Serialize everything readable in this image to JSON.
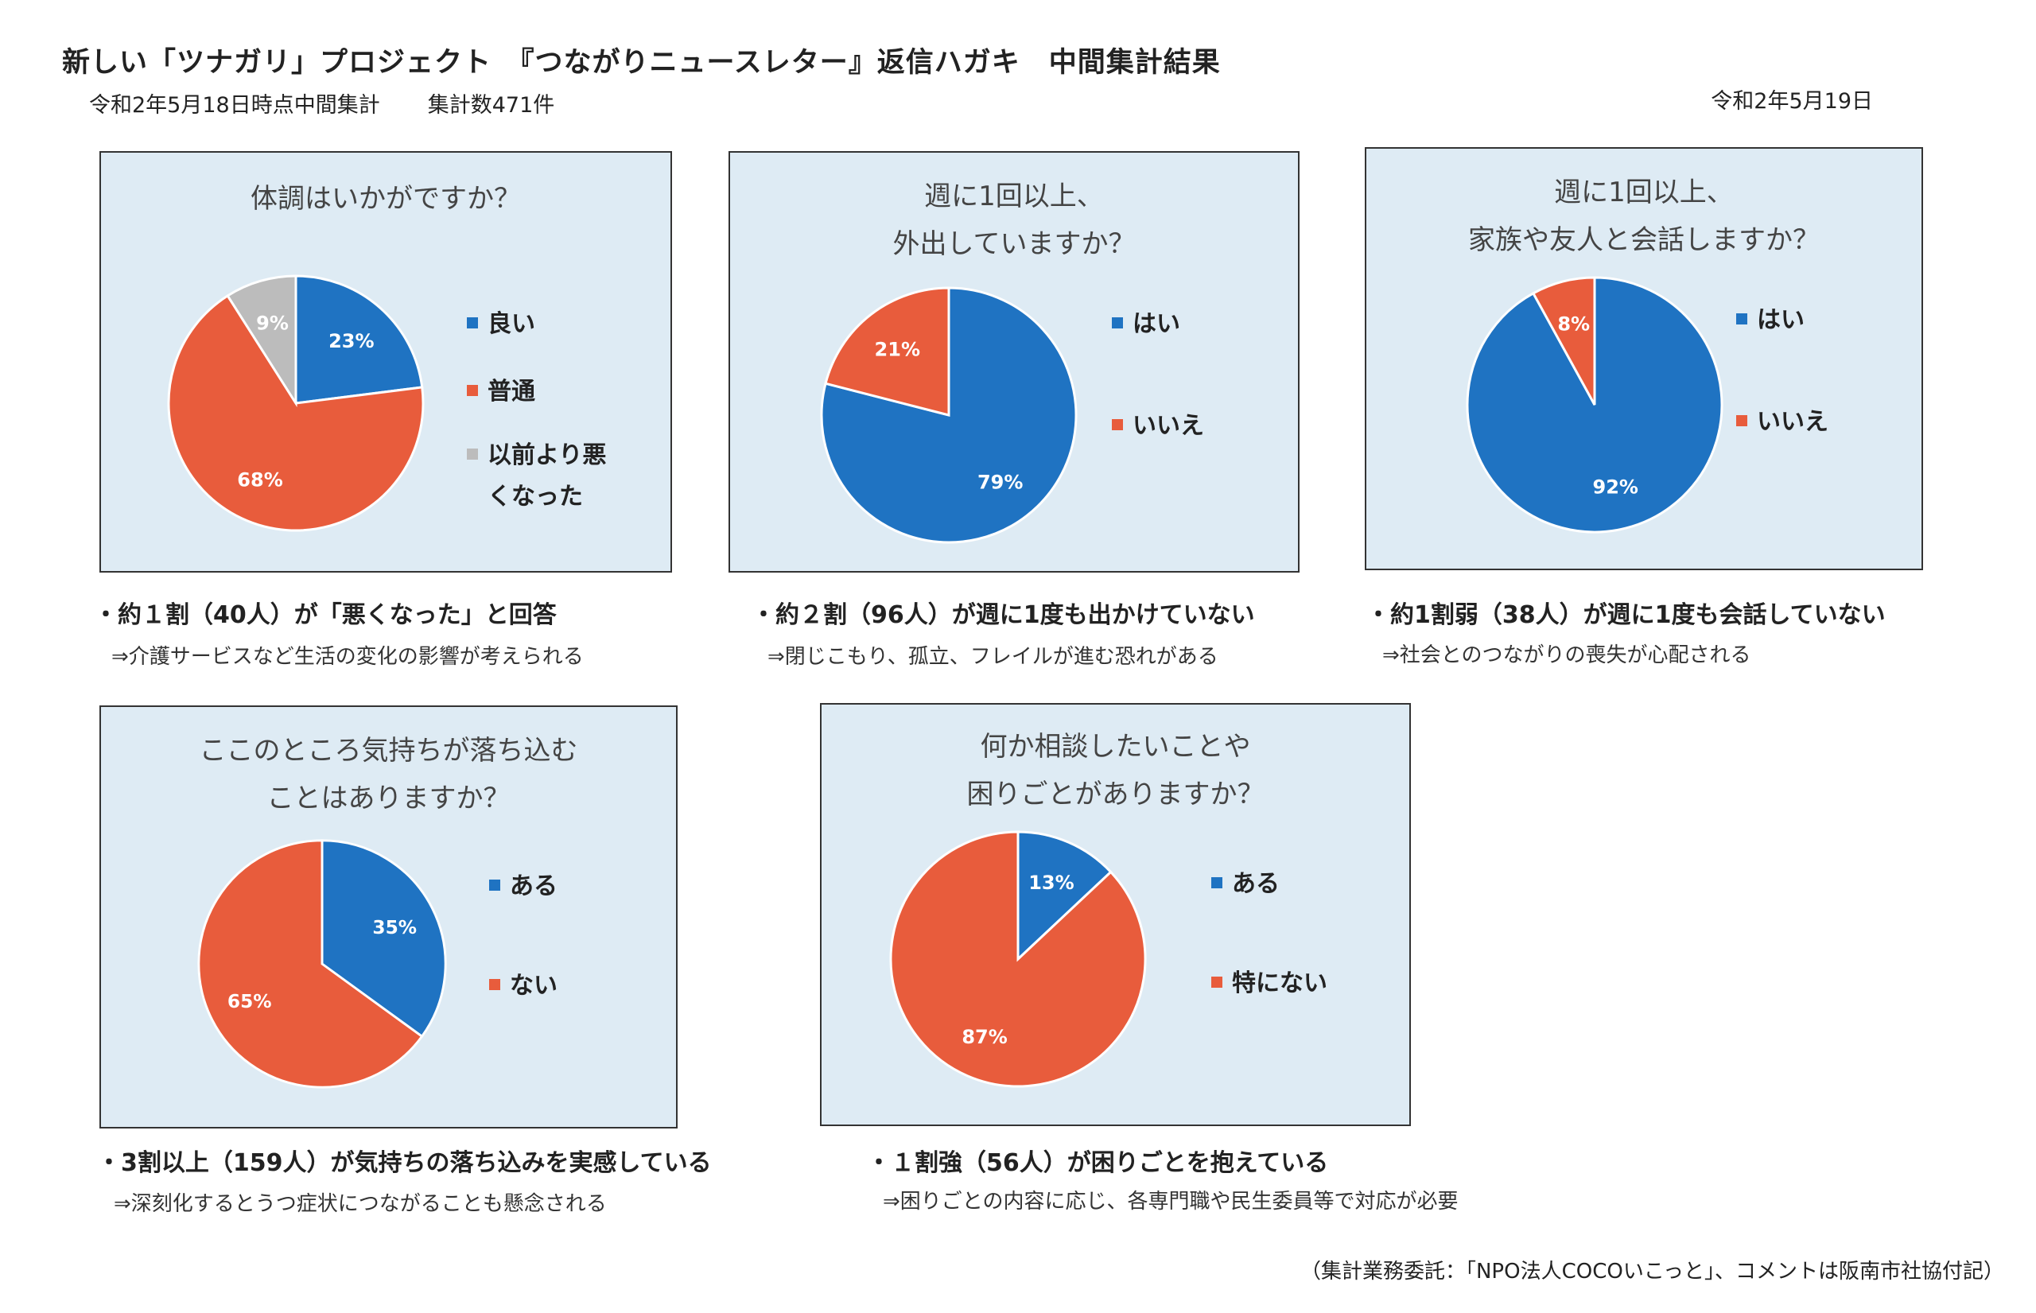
{
  "header": {
    "title": "新しい「ツナガリ」プロジェクト　『つながりニュースレター』返信ハガキ　中間集計結果",
    "subtitle_date": "令和2年5月18日時点中間集計",
    "subtitle_count": "集計数471件",
    "issue_date": "令和2年5月19日"
  },
  "colors": {
    "blue": "#1f73c2",
    "orange": "#e85c3c",
    "gray": "#bcbcbc",
    "panel_bg": "#deebf4"
  },
  "chart_data": [
    {
      "type": "pie",
      "title_lines": [
        "体調はいかがですか？"
      ],
      "categories": [
        "良い",
        "普通",
        "以前より悪くなった"
      ],
      "legend_lines": [
        [
          "良い"
        ],
        [
          "普通"
        ],
        [
          "以前より悪",
          "くなった"
        ]
      ],
      "values": [
        23,
        68,
        9
      ],
      "labels": [
        "23%",
        "68%",
        "9%"
      ],
      "colors": [
        "#1f73c2",
        "#e85c3c",
        "#bcbcbc"
      ],
      "legend": "right"
    },
    {
      "type": "pie",
      "title_lines": [
        "週に1回以上、",
        "外出していますか？"
      ],
      "categories": [
        "はい",
        "いいえ"
      ],
      "legend_lines": [
        [
          "はい"
        ],
        [
          "いいえ"
        ]
      ],
      "values": [
        79,
        21
      ],
      "labels": [
        "79%",
        "21%"
      ],
      "colors": [
        "#1f73c2",
        "#e85c3c"
      ],
      "legend": "right"
    },
    {
      "type": "pie",
      "title_lines": [
        "週に1回以上、",
        "家族や友人と会話しますか？"
      ],
      "categories": [
        "はい",
        "いいえ"
      ],
      "legend_lines": [
        [
          "はい"
        ],
        [
          "いいえ"
        ]
      ],
      "values": [
        92,
        8
      ],
      "labels": [
        "92%",
        "8%"
      ],
      "colors": [
        "#1f73c2",
        "#e85c3c"
      ],
      "legend": "right"
    },
    {
      "type": "pie",
      "title_lines": [
        "ここのところ気持ちが落ち込む",
        "ことはありますか？"
      ],
      "categories": [
        "ある",
        "ない"
      ],
      "legend_lines": [
        [
          "ある"
        ],
        [
          "ない"
        ]
      ],
      "values": [
        35,
        65
      ],
      "labels": [
        "35%",
        "65%"
      ],
      "colors": [
        "#1f73c2",
        "#e85c3c"
      ],
      "legend": "right"
    },
    {
      "type": "pie",
      "title_lines": [
        "何か相談したいことや",
        "困りごとがありますか？"
      ],
      "categories": [
        "ある",
        "特にない"
      ],
      "legend_lines": [
        [
          "ある"
        ],
        [
          "特にない"
        ]
      ],
      "values": [
        13,
        87
      ],
      "labels": [
        "13%",
        "87%"
      ],
      "colors": [
        "#1f73c2",
        "#e85c3c"
      ],
      "legend": "right"
    }
  ],
  "notes": [
    {
      "main": "・約１割（40人）が「悪くなった」と回答",
      "sub": "⇒介護サービスなど生活の変化の影響が考えられる"
    },
    {
      "main": "・約２割（96人）が週に1度も出かけていない",
      "sub": "⇒閉じこもり、孤立、フレイルが進む恐れがある"
    },
    {
      "main": "・約1割弱（38人）が週に1度も会話していない",
      "sub": "⇒社会とのつながりの喪失が心配される"
    },
    {
      "main": "・3割以上（159人）が気持ちの落ち込みを実感している",
      "sub": "⇒深刻化するとうつ症状につながることも懸念される"
    },
    {
      "main": "・１割強（56人）が困りごとを抱えている",
      "sub": "⇒困りごとの内容に応じ、各専門職や民生委員等で対応が必要"
    }
  ],
  "footer": "（集計業務委託：「NPO法人COCOいこっと」、コメントは阪南市社協付記）"
}
